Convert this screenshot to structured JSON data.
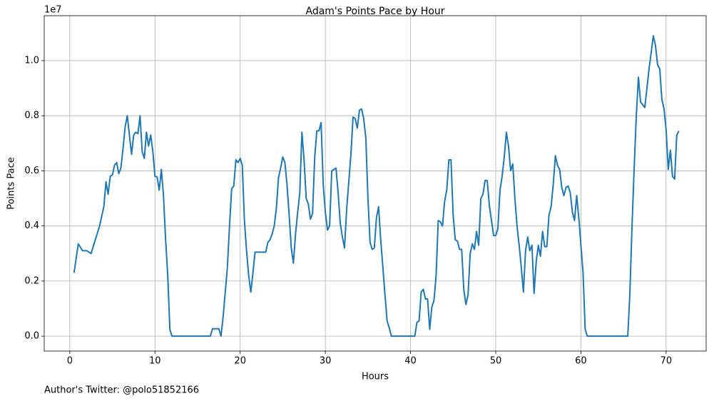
{
  "chart_data": {
    "type": "line",
    "title": "Adam's Points Pace by Hour",
    "x_label": "Hours",
    "y_label": "Points Pace",
    "y_offset_text": "1e7",
    "annotation": "Author's Twitter: @polo51852166",
    "color": "#1f77b4",
    "grid": true,
    "xlim": [
      -3.0,
      74.7
    ],
    "ylim": [
      -0.054,
      1.163
    ],
    "xticks": [
      0,
      10,
      20,
      30,
      40,
      50,
      60,
      70
    ],
    "yticks": [
      {
        "value": 0,
        "label": "0.0"
      },
      {
        "value": 0.2,
        "label": "0.2"
      },
      {
        "value": 0.4,
        "label": "0.4"
      },
      {
        "value": 0.6,
        "label": "0.6"
      },
      {
        "value": 0.8,
        "label": "0.8"
      },
      {
        "value": 1.0,
        "label": "1.0"
      }
    ],
    "x": [
      0.5,
      1,
      1.5,
      2,
      2.5,
      3,
      3.5,
      4,
      4.25,
      4.5,
      4.75,
      5,
      5.25,
      5.5,
      5.75,
      6,
      6.25,
      6.5,
      6.75,
      7,
      7.25,
      7.5,
      7.75,
      8,
      8.25,
      8.5,
      8.75,
      9,
      9.25,
      9.5,
      9.75,
      10,
      10.25,
      10.5,
      10.75,
      11,
      11.25,
      11.5,
      11.75,
      12,
      16.5,
      16.75,
      17.5,
      17.75,
      18,
      18.5,
      18.75,
      19,
      19.25,
      19.5,
      19.75,
      20,
      20.25,
      20.5,
      20.75,
      21,
      21.25,
      21.5,
      21.75,
      23,
      23.25,
      23.5,
      23.75,
      24,
      24.25,
      24.5,
      24.75,
      25,
      25.25,
      25.5,
      25.75,
      26,
      26.25,
      26.5,
      26.75,
      27,
      27.25,
      27.5,
      27.75,
      28,
      28.25,
      28.5,
      28.75,
      29,
      29.25,
      29.5,
      29.75,
      30,
      30.25,
      30.5,
      30.75,
      31,
      31.25,
      31.5,
      31.75,
      32,
      32.25,
      32.5,
      32.75,
      33,
      33.25,
      33.5,
      33.75,
      34,
      34.25,
      34.5,
      34.75,
      35,
      35.25,
      35.5,
      35.75,
      36,
      36.25,
      36.5,
      36.75,
      37,
      37.25,
      37.5,
      37.75,
      40.5,
      40.75,
      41,
      41.25,
      41.5,
      41.75,
      42,
      42.25,
      42.5,
      42.75,
      43,
      43.25,
      43.5,
      43.75,
      44,
      44.25,
      44.5,
      44.75,
      45,
      45.25,
      45.5,
      45.75,
      46,
      46.25,
      46.5,
      46.75,
      47,
      47.25,
      47.5,
      47.75,
      48,
      48.25,
      48.5,
      48.75,
      49,
      49.25,
      49.5,
      49.75,
      50,
      50.25,
      50.5,
      50.75,
      51,
      51.25,
      51.5,
      51.75,
      52,
      52.25,
      52.5,
      52.75,
      53,
      53.25,
      53.5,
      53.75,
      54,
      54.25,
      54.5,
      54.75,
      55,
      55.25,
      55.5,
      55.75,
      56,
      56.25,
      56.5,
      56.75,
      57,
      57.25,
      57.5,
      57.75,
      58,
      58.25,
      58.5,
      58.75,
      59,
      59.25,
      59.5,
      59.75,
      60,
      60.25,
      60.5,
      60.75,
      65.5,
      65.75,
      66,
      66.25,
      66.5,
      66.75,
      67,
      67.25,
      67.5,
      67.75,
      68,
      68.25,
      68.5,
      68.75,
      69,
      69.25,
      69.5,
      69.75,
      70,
      70.25,
      70.5,
      70.75,
      71,
      71.25,
      71.5
    ],
    "values": [
      0.23,
      0.335,
      0.31,
      0.31,
      0.3,
      0.35,
      0.4,
      0.47,
      0.56,
      0.515,
      0.58,
      0.585,
      0.62,
      0.63,
      0.59,
      0.61,
      0.68,
      0.76,
      0.8,
      0.73,
      0.66,
      0.73,
      0.74,
      0.735,
      0.8,
      0.67,
      0.645,
      0.74,
      0.69,
      0.73,
      0.67,
      0.58,
      0.578,
      0.53,
      0.605,
      0.51,
      0.35,
      0.22,
      0.025,
      0,
      0,
      0.027,
      0.027,
      0,
      0.07,
      0.25,
      0.4,
      0.535,
      0.545,
      0.64,
      0.63,
      0.645,
      0.62,
      0.42,
      0.31,
      0.22,
      0.16,
      0.23,
      0.305,
      0.305,
      0.34,
      0.35,
      0.37,
      0.4,
      0.465,
      0.575,
      0.61,
      0.65,
      0.63,
      0.55,
      0.44,
      0.32,
      0.265,
      0.37,
      0.45,
      0.52,
      0.74,
      0.64,
      0.5,
      0.48,
      0.425,
      0.445,
      0.65,
      0.745,
      0.745,
      0.775,
      0.55,
      0.45,
      0.385,
      0.4,
      0.6,
      0.605,
      0.61,
      0.52,
      0.41,
      0.36,
      0.32,
      0.46,
      0.56,
      0.66,
      0.795,
      0.79,
      0.755,
      0.82,
      0.825,
      0.79,
      0.72,
      0.5,
      0.34,
      0.315,
      0.32,
      0.43,
      0.47,
      0.35,
      0.25,
      0.15,
      0.055,
      0.03,
      0,
      0,
      0.05,
      0.055,
      0.16,
      0.17,
      0.135,
      0.135,
      0.025,
      0.105,
      0.13,
      0.22,
      0.42,
      0.415,
      0.4,
      0.49,
      0.53,
      0.64,
      0.64,
      0.44,
      0.35,
      0.345,
      0.315,
      0.315,
      0.17,
      0.115,
      0.15,
      0.3,
      0.335,
      0.315,
      0.38,
      0.33,
      0.5,
      0.515,
      0.565,
      0.565,
      0.475,
      0.42,
      0.365,
      0.365,
      0.39,
      0.53,
      0.58,
      0.65,
      0.74,
      0.69,
      0.6,
      0.625,
      0.5,
      0.4,
      0.33,
      0.25,
      0.16,
      0.31,
      0.36,
      0.31,
      0.33,
      0.155,
      0.27,
      0.33,
      0.29,
      0.38,
      0.325,
      0.325,
      0.44,
      0.47,
      0.55,
      0.655,
      0.62,
      0.605,
      0.54,
      0.51,
      0.54,
      0.545,
      0.52,
      0.45,
      0.42,
      0.51,
      0.43,
      0.33,
      0.23,
      0.025,
      0,
      0,
      0.16,
      0.4,
      0.61,
      0.8,
      0.94,
      0.85,
      0.84,
      0.83,
      0.9,
      0.97,
      1.03,
      1.09,
      1.055,
      0.985,
      0.97,
      0.86,
      0.825,
      0.75,
      0.605,
      0.675,
      0.58,
      0.57,
      0.73,
      0.745
    ]
  }
}
